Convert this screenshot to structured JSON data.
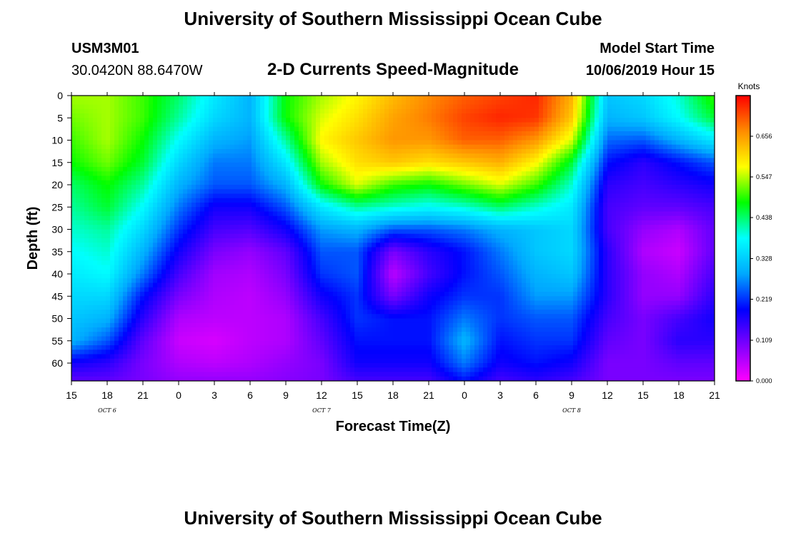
{
  "header": {
    "title": "University of Southern Mississippi Ocean Cube",
    "station_id": "USM3M01",
    "location": "30.0420N 88.6470W",
    "chart_subtitle": "2-D Currents Speed-Magnitude",
    "model_start_label": "Model Start Time",
    "model_start_value": "10/06/2019 Hour 15"
  },
  "footer": {
    "title": "University of Southern Mississippi Ocean Cube"
  },
  "chart_data": {
    "type": "heatmap",
    "title": "2-D Currents Speed-Magnitude",
    "xlabel": "Forecast Time(Z)",
    "ylabel": "Depth (ft)",
    "x_ticks": [
      "15",
      "18",
      "21",
      "0",
      "3",
      "6",
      "9",
      "12",
      "15",
      "18",
      "21",
      "0",
      "3",
      "6",
      "9",
      "12",
      "15",
      "18",
      "21"
    ],
    "date_labels": [
      {
        "text": "OCT 6",
        "tick_index": 1
      },
      {
        "text": "OCT 7",
        "tick_index": 7
      },
      {
        "text": "OCT 8",
        "tick_index": 14
      }
    ],
    "y_ticks": [
      "0",
      "5",
      "10",
      "15",
      "20",
      "25",
      "30",
      "35",
      "40",
      "45",
      "50",
      "55",
      "60"
    ],
    "xlim": [
      0,
      54
    ],
    "ylim": [
      0,
      64
    ],
    "x_unit": "hours since model start",
    "y_unit": "ft",
    "colorbar": {
      "unit": "Knots",
      "min": 0.0,
      "max": 0.765,
      "ticks": [
        "0.000",
        "0.109",
        "0.219",
        "0.328",
        "0.438",
        "0.547",
        "0.656"
      ],
      "palette": [
        "#ff00ff",
        "#7f00ff",
        "#0000ff",
        "#00a8ff",
        "#00ffff",
        "#00ff00",
        "#ffff00",
        "#ff8c00",
        "#ff0000"
      ]
    },
    "speed_knots": {
      "columns_hours": [
        0,
        3,
        6,
        9,
        12,
        15,
        18,
        21,
        24,
        27,
        30,
        33,
        36,
        39,
        42,
        45,
        48,
        51,
        54
      ],
      "rows_depth_ft": [
        0,
        5,
        10,
        15,
        20,
        25,
        30,
        35,
        40,
        45,
        50,
        55,
        60,
        64
      ],
      "values": [
        [
          0.54,
          0.54,
          0.5,
          0.44,
          0.36,
          0.3,
          0.48,
          0.54,
          0.58,
          0.63,
          0.67,
          0.7,
          0.72,
          0.74,
          0.64,
          0.32,
          0.34,
          0.4,
          0.5
        ],
        [
          0.52,
          0.54,
          0.5,
          0.42,
          0.34,
          0.3,
          0.48,
          0.56,
          0.6,
          0.65,
          0.68,
          0.72,
          0.74,
          0.73,
          0.62,
          0.3,
          0.32,
          0.38,
          0.46
        ],
        [
          0.5,
          0.54,
          0.48,
          0.38,
          0.3,
          0.28,
          0.42,
          0.58,
          0.62,
          0.66,
          0.66,
          0.7,
          0.7,
          0.66,
          0.56,
          0.25,
          0.24,
          0.3,
          0.36
        ],
        [
          0.48,
          0.52,
          0.46,
          0.34,
          0.26,
          0.26,
          0.36,
          0.54,
          0.6,
          0.62,
          0.6,
          0.62,
          0.64,
          0.58,
          0.46,
          0.2,
          0.16,
          0.2,
          0.24
        ],
        [
          0.44,
          0.48,
          0.42,
          0.3,
          0.24,
          0.24,
          0.3,
          0.48,
          0.56,
          0.5,
          0.48,
          0.52,
          0.56,
          0.5,
          0.4,
          0.16,
          0.14,
          0.16,
          0.18
        ],
        [
          0.42,
          0.46,
          0.38,
          0.26,
          0.18,
          0.18,
          0.24,
          0.36,
          0.42,
          0.4,
          0.38,
          0.4,
          0.44,
          0.4,
          0.36,
          0.14,
          0.12,
          0.12,
          0.14
        ],
        [
          0.4,
          0.42,
          0.34,
          0.22,
          0.14,
          0.13,
          0.18,
          0.28,
          0.3,
          0.24,
          0.24,
          0.26,
          0.3,
          0.32,
          0.34,
          0.14,
          0.08,
          0.06,
          0.12
        ],
        [
          0.38,
          0.4,
          0.3,
          0.18,
          0.1,
          0.08,
          0.12,
          0.24,
          0.24,
          0.1,
          0.16,
          0.2,
          0.26,
          0.32,
          0.34,
          0.16,
          0.06,
          0.04,
          0.12
        ],
        [
          0.36,
          0.38,
          0.26,
          0.14,
          0.07,
          0.06,
          0.1,
          0.22,
          0.24,
          0.05,
          0.14,
          0.2,
          0.24,
          0.3,
          0.32,
          0.16,
          0.08,
          0.06,
          0.14
        ],
        [
          0.34,
          0.34,
          0.2,
          0.1,
          0.06,
          0.05,
          0.08,
          0.18,
          0.22,
          0.1,
          0.18,
          0.22,
          0.22,
          0.28,
          0.28,
          0.16,
          0.08,
          0.08,
          0.16
        ],
        [
          0.32,
          0.3,
          0.16,
          0.06,
          0.05,
          0.05,
          0.06,
          0.14,
          0.22,
          0.2,
          0.2,
          0.26,
          0.22,
          0.24,
          0.24,
          0.14,
          0.1,
          0.14,
          0.18
        ],
        [
          0.3,
          0.24,
          0.12,
          0.04,
          0.03,
          0.05,
          0.06,
          0.12,
          0.2,
          0.2,
          0.2,
          0.3,
          0.2,
          0.22,
          0.22,
          0.12,
          0.1,
          0.16,
          0.16
        ],
        [
          0.18,
          0.16,
          0.1,
          0.06,
          0.05,
          0.06,
          0.08,
          0.1,
          0.18,
          0.18,
          0.18,
          0.26,
          0.18,
          0.2,
          0.18,
          0.1,
          0.1,
          0.12,
          0.12
        ],
        [
          0.12,
          0.12,
          0.1,
          0.08,
          0.08,
          0.08,
          0.09,
          0.1,
          0.14,
          0.14,
          0.14,
          0.2,
          0.14,
          0.16,
          0.14,
          0.1,
          0.1,
          0.1,
          0.1
        ]
      ]
    }
  }
}
